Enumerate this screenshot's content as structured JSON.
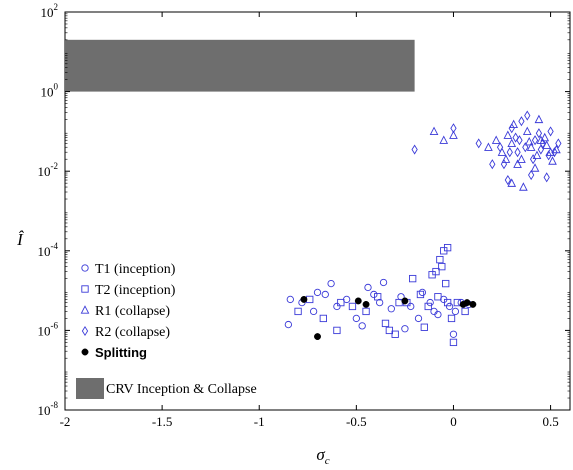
{
  "chart_data": {
    "type": "scatter",
    "title": "",
    "xlabel": "σ",
    "xlabel_sub": "c",
    "ylabel": "Î",
    "xlim": [
      -2,
      0.6
    ],
    "ylim": [
      1e-08,
      100
    ],
    "y_scale": "log",
    "grid": false,
    "legend_position": "lower-left",
    "x_ticks": [
      "-2",
      "-1.5",
      "-1",
      "-0.5",
      "0",
      "0.5"
    ],
    "x_tick_values": [
      -2,
      -1.5,
      -1,
      -0.5,
      0,
      0.5
    ],
    "y_ticks": [
      {
        "base": "10",
        "exp": "-8",
        "value": 1e-08
      },
      {
        "base": "10",
        "exp": "-6",
        "value": 1e-06
      },
      {
        "base": "10",
        "exp": "-4",
        "value": 0.0001
      },
      {
        "base": "10",
        "exp": "-2",
        "value": 0.01
      },
      {
        "base": "10",
        "exp": "0",
        "value": 1
      },
      {
        "base": "10",
        "exp": "2",
        "value": 100
      }
    ],
    "colors": {
      "blue": "#3a3ad8",
      "black": "#000000",
      "region": "#6e6e6e"
    },
    "region": {
      "name": "CRV Inception & Collapse",
      "x": [
        -2,
        -0.2
      ],
      "y": [
        1,
        20
      ]
    },
    "series": [
      {
        "name": "T1 (inception)",
        "marker": "circle",
        "x": [
          -0.85,
          -0.78,
          -0.72,
          -0.66,
          -0.6,
          -0.55,
          -0.5,
          -0.44,
          -0.38,
          -0.32,
          -0.27,
          -0.22,
          -0.16,
          -0.12,
          -0.08,
          -0.05,
          -0.02,
          0.01,
          0.04,
          0.08,
          -0.84,
          -0.63,
          -0.41,
          -0.25,
          -0.1,
          0.0,
          -0.47,
          -0.36,
          -0.18,
          -0.7
        ],
        "y": [
          1.4e-06,
          5e-06,
          3e-06,
          8e-06,
          4e-06,
          6e-06,
          2e-06,
          1.2e-05,
          5e-06,
          3.5e-06,
          7e-06,
          4e-06,
          9e-06,
          5e-06,
          2.5e-06,
          6e-06,
          4e-06,
          3e-06,
          5e-06,
          4.5e-06,
          6e-06,
          1.5e-05,
          8e-06,
          1.1e-06,
          3e-06,
          8e-07,
          1.3e-06,
          1.6e-05,
          2e-06,
          9e-06
        ]
      },
      {
        "name": "T2 (inception)",
        "marker": "square",
        "x": [
          -0.8,
          -0.74,
          -0.67,
          -0.58,
          -0.52,
          -0.45,
          -0.39,
          -0.33,
          -0.28,
          -0.21,
          -0.17,
          -0.13,
          -0.09,
          -0.07,
          -0.05,
          -0.04,
          -0.03,
          -0.01,
          0.02,
          0.06,
          -0.6,
          -0.3,
          -0.15,
          -0.06,
          0.0,
          -0.11,
          -0.35,
          -0.03,
          -0.24,
          -0.08
        ],
        "y": [
          3e-06,
          6e-06,
          2e-06,
          5e-06,
          4e-06,
          3e-06,
          7e-06,
          1e-06,
          5e-06,
          2e-05,
          8e-06,
          4e-06,
          3e-05,
          6e-05,
          0.0001,
          1.5e-05,
          5e-06,
          2e-06,
          5e-06,
          3e-06,
          1e-06,
          8e-07,
          1.2e-06,
          4e-05,
          5e-07,
          2.5e-05,
          1.5e-06,
          0.00012,
          5e-06,
          7e-06
        ]
      },
      {
        "name": "R1 (collapse)",
        "marker": "triangle",
        "x": [
          0.25,
          0.3,
          0.35,
          0.4,
          0.45,
          0.5,
          0.28,
          0.33,
          0.38,
          0.43,
          0.48,
          0.53,
          0.22,
          0.36,
          0.42,
          0.31,
          0.47,
          0.27,
          0.39,
          0.51,
          -0.1,
          -0.05,
          0.0,
          0.18,
          0.3,
          0.44
        ],
        "y": [
          0.03,
          0.05,
          0.02,
          0.04,
          0.06,
          0.03,
          0.08,
          0.015,
          0.1,
          0.025,
          0.045,
          0.035,
          0.06,
          0.004,
          0.012,
          0.15,
          0.07,
          0.02,
          0.055,
          0.018,
          0.1,
          0.06,
          0.08,
          0.04,
          0.005,
          0.2
        ]
      },
      {
        "name": "R2 (collapse)",
        "marker": "diamond",
        "x": [
          0.24,
          0.29,
          0.34,
          0.41,
          0.46,
          0.52,
          0.26,
          0.32,
          0.37,
          0.44,
          0.49,
          0.54,
          0.3,
          0.4,
          0.35,
          0.45,
          0.28,
          0.5,
          0.33,
          0.42,
          -0.2,
          0.0,
          0.13,
          0.2,
          0.38,
          0.48
        ],
        "y": [
          0.04,
          0.03,
          0.06,
          0.02,
          0.05,
          0.03,
          0.015,
          0.07,
          0.04,
          0.09,
          0.025,
          0.05,
          0.12,
          0.008,
          0.18,
          0.035,
          0.006,
          0.1,
          0.03,
          0.06,
          0.035,
          0.12,
          0.05,
          0.015,
          0.25,
          0.007
        ]
      },
      {
        "name": "Splitting",
        "marker": "filled-circle",
        "x": [
          -0.77,
          -0.7,
          -0.49,
          -0.45,
          -0.25,
          0.05,
          0.07,
          0.1
        ],
        "y": [
          6e-06,
          7e-07,
          5.5e-06,
          4.5e-06,
          5.5e-06,
          4.5e-06,
          5e-06,
          4.5e-06
        ]
      }
    ]
  }
}
